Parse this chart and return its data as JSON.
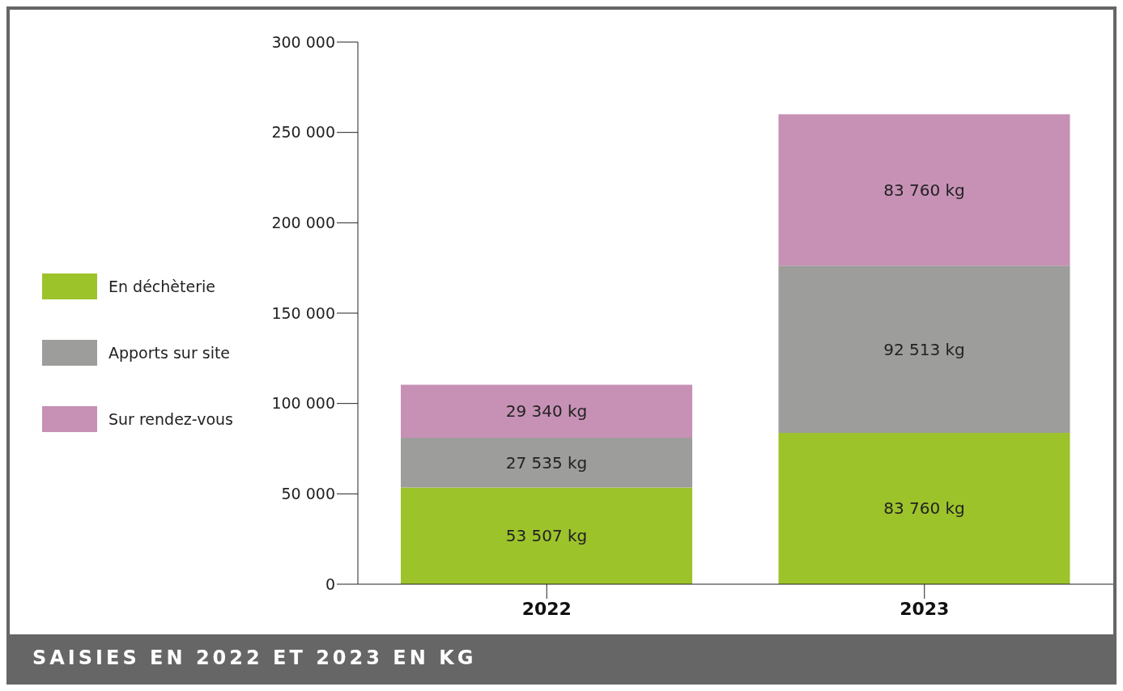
{
  "chart_data": {
    "type": "bar",
    "title": "SAISIES EN 2022 ET 2023 EN KG",
    "categories": [
      "2022",
      "2023"
    ],
    "stacked": true,
    "legend": "left",
    "series": [
      {
        "name": "En déchèterie",
        "color": "#9dc32b",
        "values": [
          53507,
          83760
        ],
        "value_labels": [
          "53 507 kg",
          "83 760 kg"
        ]
      },
      {
        "name": "Apports sur site",
        "color": "#9d9d9c",
        "values": [
          27535,
          92513
        ],
        "value_labels": [
          "27 535 kg",
          "92 513 kg"
        ]
      },
      {
        "name": "Sur rendez-vous",
        "color": "#c791b5",
        "values": [
          29340,
          83760
        ],
        "value_labels": [
          "29 340 kg",
          "83 760 kg"
        ]
      }
    ],
    "ylim": [
      0,
      300000
    ],
    "yticks": [
      {
        "value": 0,
        "label": "0"
      },
      {
        "value": 50000,
        "label": "50 000"
      },
      {
        "value": 100000,
        "label": "100 000"
      },
      {
        "value": 150000,
        "label": "150 000"
      },
      {
        "value": 200000,
        "label": "200 000"
      },
      {
        "value": 250000,
        "label": "250 000"
      },
      {
        "value": 300000,
        "label": "300 000"
      }
    ],
    "grid": false
  }
}
